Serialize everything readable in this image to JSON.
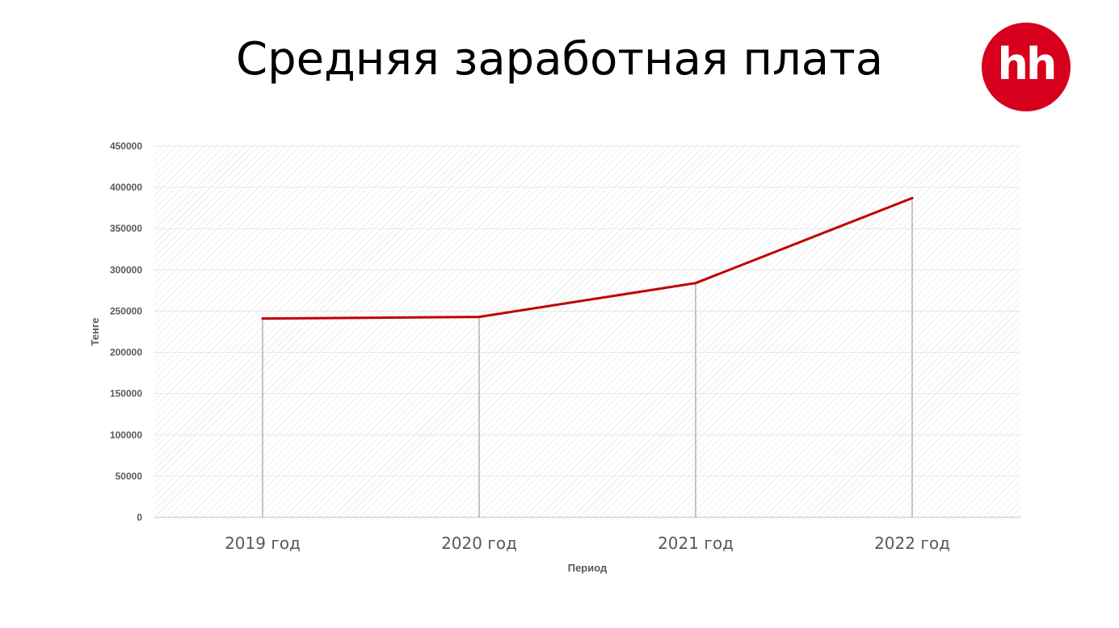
{
  "slide": {
    "title": "Средняя заработная плата",
    "logo_text": "hh",
    "logo_color": "#d6001c"
  },
  "chart_data": {
    "type": "line",
    "categories": [
      "2019 год",
      "2020 год",
      "2021 год",
      "2022 год"
    ],
    "values": [
      241000,
      243000,
      284000,
      387000
    ],
    "xlabel": "Период",
    "ylabel": "Тенге",
    "ylim": [
      0,
      450000
    ],
    "yticks": [
      "0",
      "50000",
      "100000",
      "150000",
      "200000",
      "250000",
      "300000",
      "350000",
      "400000",
      "450000"
    ],
    "grid": true,
    "drop_lines": true,
    "line_color": "#c00000",
    "plot_background": "hatched-diagonal"
  }
}
